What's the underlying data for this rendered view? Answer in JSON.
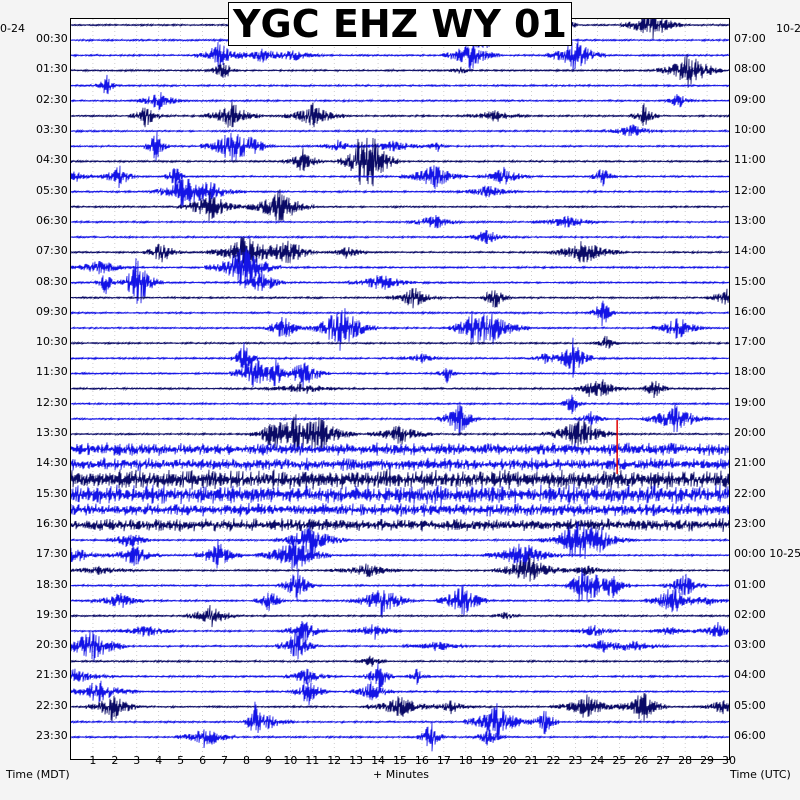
{
  "header": {
    "title": "YGC EHZ WY 01",
    "left_date_fragment": "0-24",
    "right_date_fragment": "10-2",
    "left_axis_title": "Time (MDT)",
    "bottom_axis_title": "+ Minutes",
    "right_axis_title": "Time (UTC)"
  },
  "colors": {
    "trace_dark": "#0a0a66",
    "trace_blue": "#1414e6",
    "grid_dots": "#b0b0b0",
    "marker_red": "#e00000"
  },
  "chart_data": {
    "type": "seismogram-helicorder",
    "station": "YGC EHZ WY 01",
    "trace_count": 48,
    "minutes_per_line": 30,
    "x_ticks": [
      "1",
      "2",
      "3",
      "4",
      "5",
      "6",
      "7",
      "8",
      "9",
      "10",
      "11",
      "12",
      "13",
      "14",
      "15",
      "16",
      "17",
      "18",
      "19",
      "20",
      "21",
      "22",
      "23",
      "24",
      "25",
      "26",
      "27",
      "28",
      "29",
      "30"
    ],
    "xlim": [
      0,
      30
    ],
    "left_time_labels": [
      "00:30",
      "01:30",
      "02:30",
      "03:30",
      "04:30",
      "05:30",
      "06:30",
      "07:30",
      "08:30",
      "09:30",
      "10:30",
      "11:30",
      "12:30",
      "13:30",
      "14:30",
      "15:30",
      "16:30",
      "17:30",
      "18:30",
      "19:30",
      "20:30",
      "21:30",
      "22:30",
      "23:30"
    ],
    "right_time_labels": [
      "07:00",
      "08:00",
      "09:00",
      "10:00",
      "11:00",
      "12:00",
      "13:00",
      "14:00",
      "15:00",
      "16:00",
      "17:00",
      "18:00",
      "19:00",
      "20:00",
      "21:00",
      "22:00",
      "23:00",
      "00:00 10-25",
      "01:00",
      "02:00",
      "03:00",
      "04:00",
      "05:00",
      "06:00"
    ],
    "high_noise_traces": [
      28,
      29,
      30,
      31,
      32,
      33
    ],
    "red_marker": {
      "trace": 27,
      "minute": 24.9
    }
  }
}
